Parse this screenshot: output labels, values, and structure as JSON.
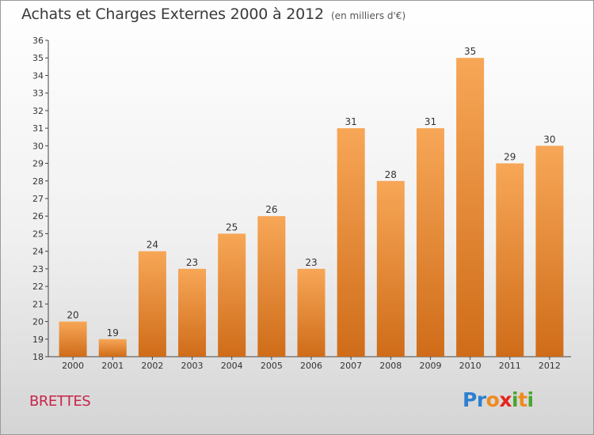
{
  "title": "Achats et Charges Externes 2000 à 2012",
  "unit": "(en milliers d'€)",
  "commune": "BRETTES",
  "logo": {
    "text": "Proxiti",
    "letters": [
      {
        "ch": "P",
        "color": "#2f7fd0"
      },
      {
        "ch": "r",
        "color": "#2f7fd0"
      },
      {
        "ch": "o",
        "color": "#f08a1c"
      },
      {
        "ch": "x",
        "color": "#e8231b"
      },
      {
        "ch": "i",
        "color": "#4aa52e"
      },
      {
        "ch": "t",
        "color": "#f08a1c"
      },
      {
        "ch": "i",
        "color": "#4aa52e"
      }
    ]
  },
  "colors": {
    "bar_top": "#f7a757",
    "bar_bottom": "#cf6c19",
    "axis": "#444444",
    "grid": "#cfcfcf"
  },
  "chart_data": {
    "type": "bar",
    "title": "Achats et Charges Externes 2000 à 2012",
    "subtitle": "(en milliers d'€)",
    "xlabel": "",
    "ylabel": "",
    "categories": [
      "2000",
      "2001",
      "2002",
      "2003",
      "2004",
      "2005",
      "2006",
      "2007",
      "2008",
      "2009",
      "2010",
      "2011",
      "2012"
    ],
    "values": [
      20,
      19,
      24,
      23,
      25,
      26,
      23,
      31,
      28,
      31,
      35,
      29,
      30
    ],
    "ylim": [
      18,
      36
    ],
    "yticks": [
      18,
      19,
      20,
      21,
      22,
      23,
      24,
      25,
      26,
      27,
      28,
      29,
      30,
      31,
      32,
      33,
      34,
      35,
      36
    ],
    "grid": false,
    "legend": "none"
  }
}
